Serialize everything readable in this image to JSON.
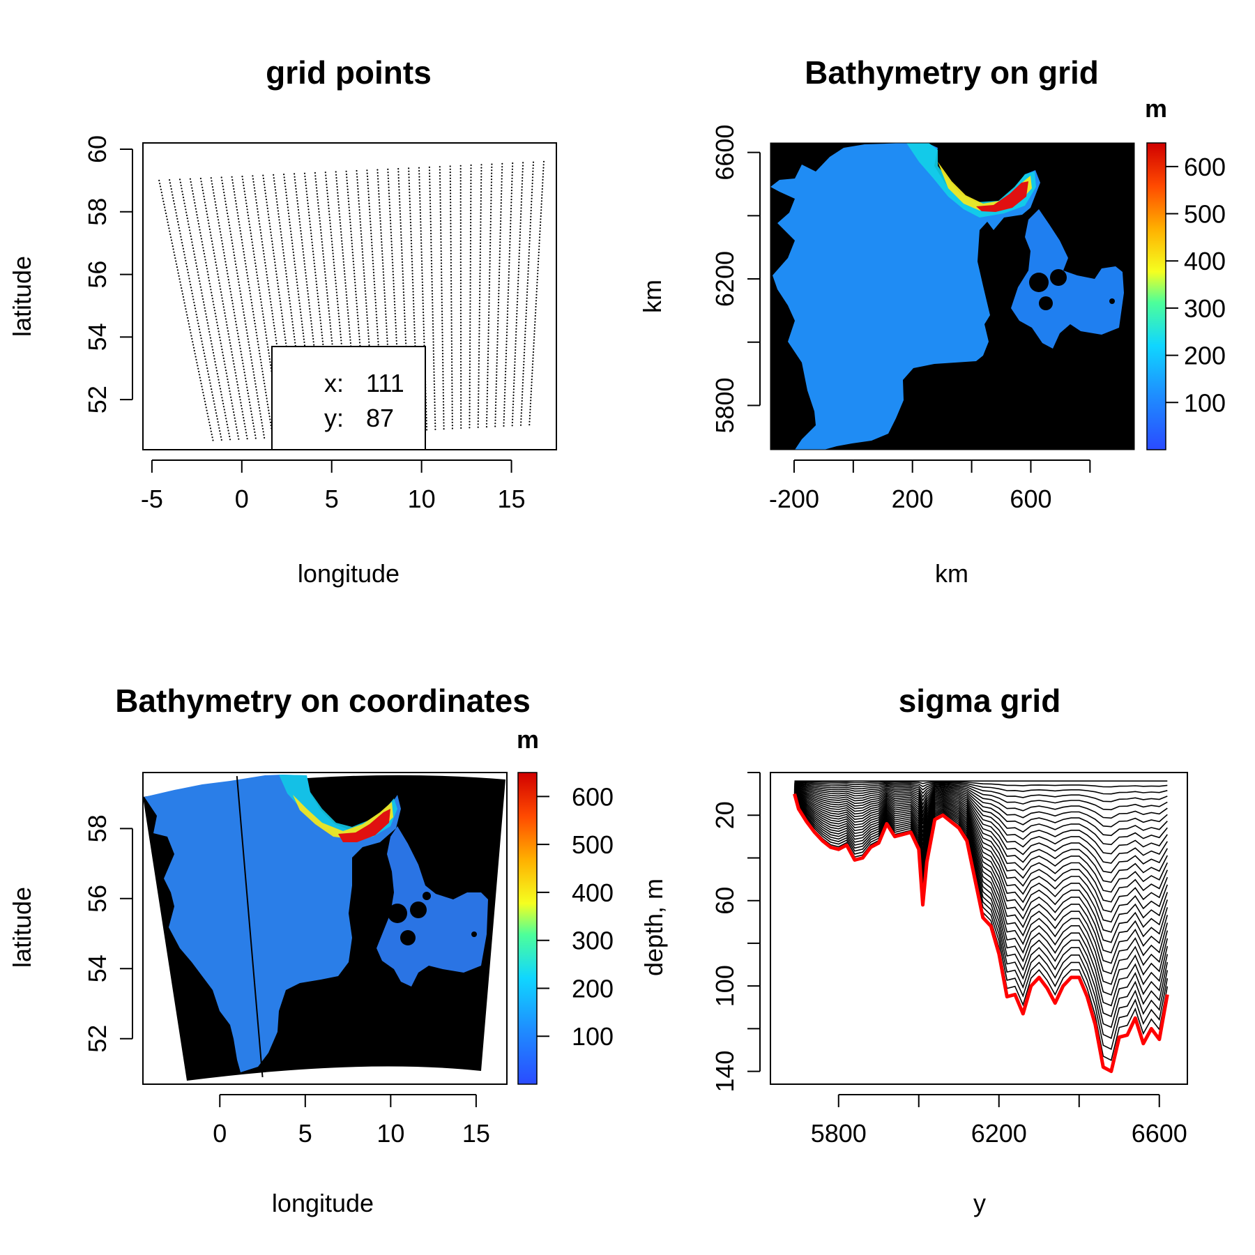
{
  "chart_data": [
    {
      "type": "scatter",
      "title": "grid points",
      "xlabel": "longitude",
      "ylabel": "latitude",
      "xlim": [
        -5.5,
        17.5
      ],
      "ylim": [
        50.4,
        60.2
      ],
      "xticks": [
        "-5",
        "0",
        "5",
        "10",
        "15"
      ],
      "yticks": [
        "52",
        "54",
        "56",
        "58",
        "60"
      ],
      "legend": {
        "position": "bottom",
        "entries": [
          {
            "key": "x:",
            "value": "111"
          },
          {
            "key": "y:",
            "value": "87"
          }
        ]
      },
      "domain_corners": {
        "lon": [
          -4.6,
          16.8,
          15.3,
          -2.3
        ],
        "lat": [
          59.0,
          59.6,
          51.2,
          50.7
        ]
      },
      "grid": false
    },
    {
      "type": "heatmap",
      "title": "Bathymetry on grid",
      "xlabel": "km",
      "ylabel": "km",
      "xlim": [
        -280,
        950
      ],
      "ylim": [
        5660,
        6630
      ],
      "xticks": [
        "-200",
        "200",
        "600"
      ],
      "yticks": [
        "5800",
        "6200",
        "6600"
      ],
      "colorbar": {
        "unit": "m",
        "ticks": [
          "100",
          "200",
          "300",
          "400",
          "500",
          "600"
        ],
        "range": [
          0,
          650
        ]
      }
    },
    {
      "type": "heatmap",
      "title": "Bathymetry on coordinates",
      "xlabel": "longitude",
      "ylabel": "latitude",
      "xlim": [
        -4.5,
        16.8
      ],
      "ylim": [
        50.7,
        59.6
      ],
      "xticks": [
        "0",
        "5",
        "10",
        "15"
      ],
      "yticks": [
        "52",
        "54",
        "56",
        "58"
      ],
      "section_line": {
        "lon": [
          1.0,
          2.5
        ],
        "lat": [
          59.5,
          50.9
        ]
      },
      "colorbar": {
        "unit": "m",
        "label": "depth, m",
        "ticks": [
          "100",
          "200",
          "300",
          "400",
          "500",
          "600"
        ],
        "range": [
          0,
          650
        ]
      }
    },
    {
      "type": "line",
      "title": "sigma grid",
      "xlabel": "y",
      "ylabel": "",
      "xlim": [
        5630,
        6670
      ],
      "ylim": [
        146,
        0
      ],
      "xticks": [
        "5800",
        "6200",
        "6600"
      ],
      "yticks": [
        "20",
        "60",
        "100",
        "140"
      ],
      "sigma_levels": 30,
      "bottom_color": "#ff0000",
      "bottom_depth": {
        "y": [
          5690,
          5700,
          5720,
          5740,
          5760,
          5780,
          5800,
          5820,
          5840,
          5860,
          5880,
          5900,
          5920,
          5940,
          5960,
          5980,
          6000,
          6010,
          6020,
          6040,
          6060,
          6080,
          6100,
          6120,
          6140,
          6160,
          6180,
          6200,
          6220,
          6240,
          6260,
          6280,
          6300,
          6320,
          6340,
          6360,
          6380,
          6400,
          6420,
          6440,
          6460,
          6480,
          6500,
          6520,
          6540,
          6560,
          6580,
          6600,
          6620
        ],
        "depth": [
          10,
          17,
          23,
          28,
          32,
          35,
          36,
          34,
          41,
          40,
          35,
          33,
          24,
          30,
          29,
          28,
          36,
          62,
          42,
          22,
          20,
          23,
          26,
          32,
          50,
          68,
          72,
          85,
          105,
          104,
          113,
          100,
          96,
          101,
          108,
          100,
          96,
          96,
          105,
          118,
          138,
          140,
          124,
          123,
          115,
          127,
          120,
          125,
          104
        ]
      }
    }
  ]
}
